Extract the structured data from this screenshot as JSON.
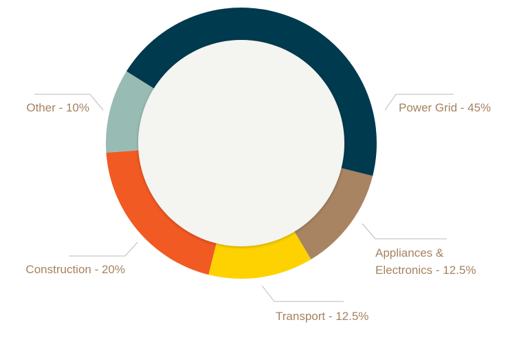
{
  "chart_data": {
    "type": "donut",
    "value_labels": [
      "Power Grid - 45%",
      "Appliances & Electronics - 12.5%",
      "Transport - 12.5%",
      "Construction - 20%",
      "Other - 10%"
    ],
    "values": [
      45,
      12.5,
      12.5,
      20,
      10
    ],
    "colors": [
      "#003a4f",
      "#a88462",
      "#fed200",
      "#f15a22",
      "#98bcb3"
    ]
  }
}
